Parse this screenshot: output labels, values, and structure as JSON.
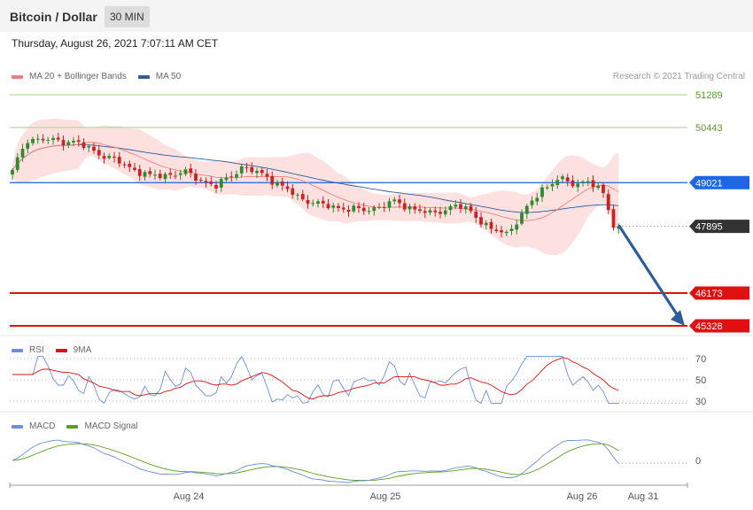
{
  "header": {
    "title": "Bitcoin / Dollar",
    "timeframe": "30 MIN"
  },
  "datetime": "Thursday, August 26, 2021 7:07:11 AM CET",
  "credit": "Research © 2021 Trading Central",
  "legends": {
    "price": [
      {
        "label": "MA 20 + Bollinger Bands",
        "color": "#f08080"
      },
      {
        "label": "MA 50",
        "color": "#2f5d9a"
      }
    ],
    "rsi": [
      {
        "label": "RSI",
        "color": "#6a8fdc"
      },
      {
        "label": "9MA",
        "color": "#e01010"
      }
    ],
    "macd": [
      {
        "label": "MACD",
        "color": "#6a8fdc"
      },
      {
        "label": "MACD Signal",
        "color": "#5aa020"
      }
    ]
  },
  "x_labels": [
    "Aug 24",
    "Aug 25",
    "Aug 26",
    "Aug 31"
  ],
  "chart_data": [
    {
      "type": "candlestick",
      "name": "price",
      "ylim": [
        45328,
        51289
      ],
      "levels": [
        {
          "value": 51289,
          "label": "51289",
          "kind": "resistance",
          "color": "#a8cf8a"
        },
        {
          "value": 50443,
          "label": "50443",
          "kind": "resistance",
          "color": "#a8cf8a"
        },
        {
          "value": 49021,
          "label": "49021",
          "kind": "pivot",
          "color": "#2f6fe0"
        },
        {
          "value": 47895,
          "label": "47895",
          "kind": "last",
          "color": "#333333"
        },
        {
          "value": 46173,
          "label": "46173",
          "kind": "support",
          "color": "#e01010"
        },
        {
          "value": 45328,
          "label": "45328",
          "kind": "support",
          "color": "#e01010"
        }
      ],
      "candles": [],
      "ma20": [],
      "ma50": [],
      "bb_width": [],
      "arrow": {
        "from_index": 0,
        "from_value": 47895,
        "to_value": 45328
      },
      "colors": {
        "up": "#2e8b2e",
        "down": "#cc2222",
        "band": "#fde0e0",
        "ma20": "#f08080",
        "ma50": "#2f5d9a"
      }
    },
    {
      "type": "line",
      "name": "rsi",
      "ylim": [
        25,
        75
      ],
      "yticks": [
        70,
        50,
        30
      ],
      "series": [
        {
          "name": "RSI",
          "color": "#6a8fdc",
          "values": []
        },
        {
          "name": "9MA",
          "color": "#e01010",
          "values": []
        }
      ]
    },
    {
      "type": "line",
      "name": "macd",
      "yticks": [
        0
      ],
      "series": [
        {
          "name": "MACD",
          "color": "#6a8fdc",
          "values": []
        },
        {
          "name": "MACD Signal",
          "color": "#5aa020",
          "values": []
        }
      ]
    }
  ]
}
